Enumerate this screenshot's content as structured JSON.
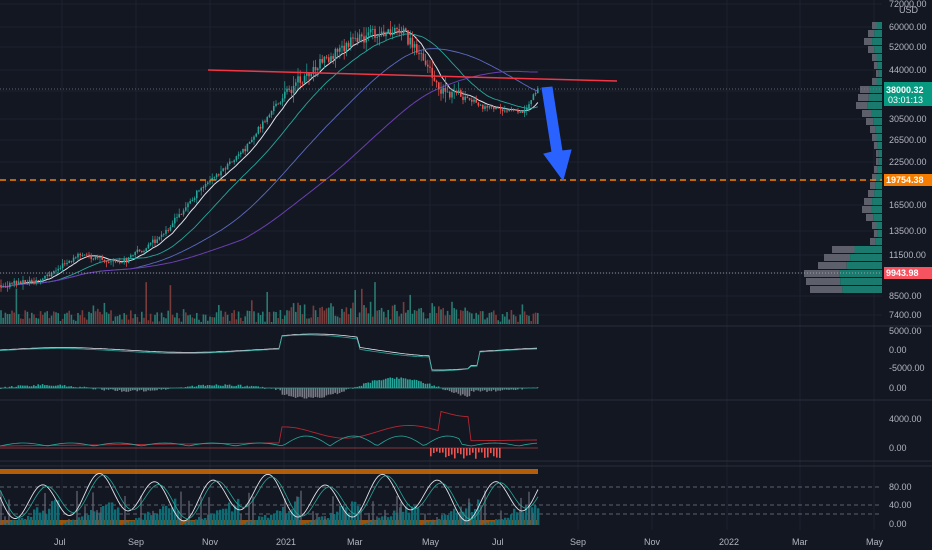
{
  "colors": {
    "background": "#131722",
    "grid": "#1e222d",
    "text": "#b2b5be",
    "up": "#26a69a",
    "down": "#ef5350",
    "price_current": "#089981",
    "support": "#f57c00",
    "resistance": "#f23645",
    "arrow": "#2962ff",
    "lower_support": "#f7525f"
  },
  "chart_data": [
    {
      "type": "candlestick",
      "panel": "price",
      "y_scale": "log",
      "y_unit": "USD",
      "y_ticks": [
        "72000.00",
        "60000.00",
        "52000.00",
        "44000.00",
        "38000.00",
        "30500.00",
        "26500.00",
        "22500.00",
        "19500.00",
        "16500.00",
        "13500.00",
        "11500.00",
        "9943.98",
        "8500.00",
        "7400.00"
      ],
      "x_ticks": [
        "Jul",
        "Sep",
        "Nov",
        "2021",
        "Mar",
        "May",
        "Jul",
        "Sep",
        "Nov",
        "2022",
        "Mar",
        "May"
      ],
      "current_price": "38000.32",
      "countdown": "03:01:13",
      "support_level": "19754.38",
      "lower_level": "9943.98",
      "approx_close_path": [
        {
          "x": "2020-06",
          "y": 9200
        },
        {
          "x": "2020-07",
          "y": 9500
        },
        {
          "x": "2020-08",
          "y": 11500
        },
        {
          "x": "2020-09",
          "y": 10800
        },
        {
          "x": "2020-10",
          "y": 13000
        },
        {
          "x": "2020-11",
          "y": 18500
        },
        {
          "x": "2020-12",
          "y": 24000
        },
        {
          "x": "2021-01",
          "y": 36000
        },
        {
          "x": "2021-02",
          "y": 47000
        },
        {
          "x": "2021-03",
          "y": 56000
        },
        {
          "x": "2021-04",
          "y": 59000
        },
        {
          "x": "2021-05",
          "y": 38000
        },
        {
          "x": "2021-06",
          "y": 34000
        },
        {
          "x": "2021-07",
          "y": 32000
        },
        {
          "x": "2021-07-26",
          "y": 38000
        }
      ]
    },
    {
      "type": "line",
      "panel": "oscillator-1",
      "y_ticks": [
        "5000.00",
        "0.00",
        "-5000.00"
      ]
    },
    {
      "type": "histogram",
      "panel": "oscillator-2",
      "y_ticks": [
        "0.00"
      ]
    },
    {
      "type": "line",
      "panel": "oscillator-3",
      "y_ticks": [
        "4000.00",
        "0.00"
      ]
    },
    {
      "type": "line",
      "panel": "stochastic",
      "y_ticks": [
        "80.00",
        "40.00",
        "0.00"
      ]
    }
  ]
}
